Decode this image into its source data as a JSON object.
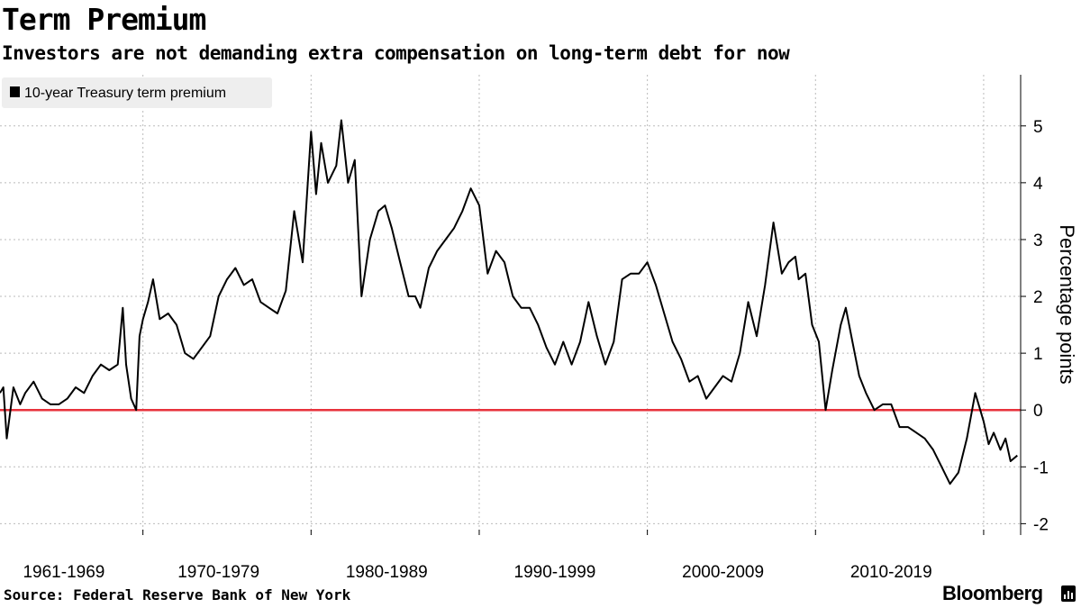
{
  "header": {
    "title": "Term Premium",
    "subtitle": "Investors are not demanding extra compensation on long-term debt for now"
  },
  "footer": {
    "source": "Source: Federal Reserve Bank of New York",
    "brand": "Bloomberg"
  },
  "colors": {
    "series": "#000000",
    "zero_line": "#e8323c",
    "grid": "#bbbbbb",
    "legend_bg": "#eeeeee"
  },
  "icons": {
    "brand": "bloomberg-terminal-icon"
  },
  "chart_data": {
    "type": "line",
    "title": "Term Premium",
    "subtitle": "Investors are not demanding extra compensation on long-term debt for now",
    "ylabel": "Percentage points",
    "xlabel": "",
    "ylim": [
      -2.2,
      5.9
    ],
    "xlim": [
      1961.5,
      2022.2
    ],
    "y_ticks": [
      -2,
      -1,
      0,
      1,
      2,
      3,
      4,
      5
    ],
    "x_tick_labels": [
      "1961-1969",
      "1970-1979",
      "1980-1989",
      "1990-1999",
      "2000-2009",
      "2010-2019"
    ],
    "x_tick_label_centers": [
      1965.3,
      1974.5,
      1984.5,
      1994.5,
      2004.5,
      2014.5
    ],
    "x_gridlines": [
      1970,
      1980,
      1990,
      2000,
      2010,
      2020
    ],
    "grid": true,
    "legend": {
      "position": "top-left"
    },
    "reference_line": {
      "y": 0
    },
    "series": [
      {
        "name": "10-year Treasury term premium",
        "x": [
          1961.5,
          1961.7,
          1961.9,
          1962.3,
          1962.7,
          1963.0,
          1963.5,
          1964.0,
          1964.5,
          1965.0,
          1965.5,
          1966.0,
          1966.5,
          1967.0,
          1967.5,
          1968.0,
          1968.5,
          1968.8,
          1969.0,
          1969.3,
          1969.6,
          1969.8,
          1970.0,
          1970.3,
          1970.6,
          1971.0,
          1971.5,
          1972.0,
          1972.5,
          1973.0,
          1973.5,
          1974.0,
          1974.5,
          1975.0,
          1975.5,
          1976.0,
          1976.5,
          1977.0,
          1977.5,
          1978.0,
          1978.5,
          1979.0,
          1979.5,
          1980.0,
          1980.3,
          1980.6,
          1981.0,
          1981.5,
          1981.8,
          1982.2,
          1982.6,
          1983.0,
          1983.5,
          1984.0,
          1984.4,
          1984.8,
          1985.3,
          1985.8,
          1986.2,
          1986.5,
          1987.0,
          1987.5,
          1988.0,
          1988.5,
          1989.0,
          1989.5,
          1990.0,
          1990.5,
          1991.0,
          1991.5,
          1992.0,
          1992.5,
          1993.0,
          1993.5,
          1994.0,
          1994.5,
          1995.0,
          1995.5,
          1996.0,
          1996.5,
          1997.0,
          1997.5,
          1998.0,
          1998.5,
          1999.0,
          1999.5,
          2000.0,
          2000.5,
          2001.0,
          2001.5,
          2002.0,
          2002.5,
          2003.0,
          2003.5,
          2004.0,
          2004.5,
          2005.0,
          2005.5,
          2006.0,
          2006.5,
          2007.0,
          2007.5,
          2008.0,
          2008.4,
          2008.8,
          2009.0,
          2009.4,
          2009.8,
          2010.2,
          2010.6,
          2011.0,
          2011.5,
          2011.8,
          2012.2,
          2012.6,
          2013.0,
          2013.5,
          2014.0,
          2014.5,
          2015.0,
          2015.5,
          2016.0,
          2016.5,
          2017.0,
          2017.5,
          2018.0,
          2018.5,
          2019.0,
          2019.5,
          2020.0,
          2020.3,
          2020.6,
          2021.0,
          2021.3,
          2021.6,
          2022.0
        ],
        "values": [
          0.3,
          0.4,
          -0.5,
          0.4,
          0.1,
          0.3,
          0.5,
          0.2,
          0.1,
          0.1,
          0.2,
          0.4,
          0.3,
          0.6,
          0.8,
          0.7,
          0.8,
          1.8,
          0.8,
          0.2,
          0.0,
          1.3,
          1.6,
          1.9,
          2.3,
          1.6,
          1.7,
          1.5,
          1.0,
          0.9,
          1.1,
          1.3,
          2.0,
          2.3,
          2.5,
          2.2,
          2.3,
          1.9,
          1.8,
          1.7,
          2.1,
          3.5,
          2.6,
          4.9,
          3.8,
          4.7,
          4.0,
          4.3,
          5.1,
          4.0,
          4.4,
          2.0,
          3.0,
          3.5,
          3.6,
          3.2,
          2.6,
          2.0,
          2.0,
          1.8,
          2.5,
          2.8,
          3.0,
          3.2,
          3.5,
          3.9,
          3.6,
          2.4,
          2.8,
          2.6,
          2.0,
          1.8,
          1.8,
          1.5,
          1.1,
          0.8,
          1.2,
          0.8,
          1.2,
          1.9,
          1.3,
          0.8,
          1.2,
          2.3,
          2.4,
          2.4,
          2.6,
          2.2,
          1.7,
          1.2,
          0.9,
          0.5,
          0.6,
          0.2,
          0.4,
          0.6,
          0.5,
          1.0,
          1.9,
          1.3,
          2.2,
          3.3,
          2.4,
          2.6,
          2.7,
          2.3,
          2.4,
          1.5,
          1.2,
          0.0,
          0.7,
          1.5,
          1.8,
          1.2,
          0.6,
          0.3,
          0.0,
          0.1,
          0.1,
          -0.3,
          -0.3,
          -0.4,
          -0.5,
          -0.7,
          -1.0,
          -1.3,
          -1.1,
          -0.5,
          0.3,
          -0.2,
          -0.6,
          -0.4,
          -0.7,
          -0.5,
          -0.9,
          -0.8
        ]
      }
    ]
  }
}
